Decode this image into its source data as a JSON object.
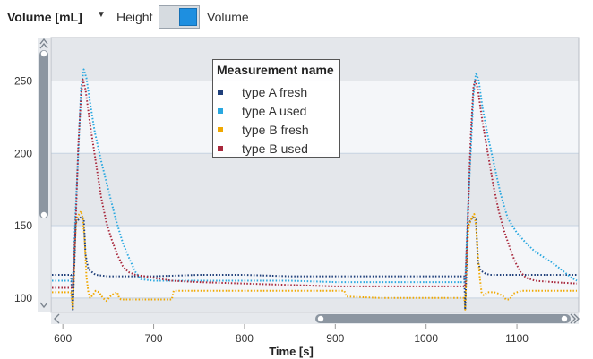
{
  "toolbar": {
    "metric_dropdown": "Volume [mL]",
    "height_label": "Height",
    "volume_label": "Volume",
    "toggle_state": "Volume"
  },
  "colors": {
    "type_a_fresh": "#1f3f7a",
    "type_a_used": "#2aa8e0",
    "type_b_fresh": "#f0a800",
    "type_b_used": "#a8283c",
    "plot_band_dark": "#e4e7eb",
    "plot_band_light": "#f4f6f9"
  },
  "chart_data": {
    "type": "line",
    "title": "",
    "xlabel": "Time [s]",
    "ylabel": "",
    "xlim": [
      587,
      1168
    ],
    "ylim": [
      90,
      280
    ],
    "x_ticks": [
      600,
      700,
      800,
      900,
      1000,
      1100
    ],
    "y_ticks": [
      100,
      150,
      200,
      250
    ],
    "grid": true,
    "legend": {
      "title": "Measurement name",
      "placement": "top-center"
    },
    "series": [
      {
        "name": "type A fresh",
        "color_key": "type_a_fresh",
        "points": [
          [
            588,
            116
          ],
          [
            605,
            116
          ],
          [
            609,
            116
          ],
          [
            611,
            92
          ],
          [
            613,
            130
          ],
          [
            614,
            152
          ],
          [
            617,
            154
          ],
          [
            620,
            156
          ],
          [
            623,
            155
          ],
          [
            625,
            130
          ],
          [
            628,
            120
          ],
          [
            632,
            118
          ],
          [
            636,
            116
          ],
          [
            650,
            115
          ],
          [
            700,
            115
          ],
          [
            750,
            116
          ],
          [
            800,
            116
          ],
          [
            850,
            115
          ],
          [
            900,
            115
          ],
          [
            950,
            115
          ],
          [
            1000,
            115
          ],
          [
            1040,
            115
          ],
          [
            1042,
            115
          ],
          [
            1043,
            92
          ],
          [
            1045,
            130
          ],
          [
            1046,
            150
          ],
          [
            1049,
            154
          ],
          [
            1052,
            156
          ],
          [
            1055,
            154
          ],
          [
            1057,
            125
          ],
          [
            1060,
            119
          ],
          [
            1065,
            117
          ],
          [
            1070,
            116
          ],
          [
            1100,
            116
          ],
          [
            1120,
            116
          ],
          [
            1150,
            116
          ],
          [
            1166,
            116
          ]
        ]
      },
      {
        "name": "type A used",
        "color_key": "type_a_used",
        "points": [
          [
            588,
            112
          ],
          [
            605,
            112
          ],
          [
            609,
            112
          ],
          [
            611,
            112
          ],
          [
            614,
            160
          ],
          [
            617,
            200
          ],
          [
            620,
            245
          ],
          [
            623,
            258
          ],
          [
            626,
            252
          ],
          [
            630,
            235
          ],
          [
            635,
            215
          ],
          [
            642,
            195
          ],
          [
            650,
            175
          ],
          [
            658,
            155
          ],
          [
            666,
            138
          ],
          [
            674,
            126
          ],
          [
            680,
            118
          ],
          [
            686,
            113
          ],
          [
            700,
            112
          ],
          [
            750,
            112
          ],
          [
            800,
            112
          ],
          [
            850,
            112
          ],
          [
            900,
            111
          ],
          [
            950,
            111
          ],
          [
            1000,
            111
          ],
          [
            1040,
            111
          ],
          [
            1043,
            111
          ],
          [
            1046,
            160
          ],
          [
            1049,
            200
          ],
          [
            1052,
            240
          ],
          [
            1055,
            256
          ],
          [
            1058,
            250
          ],
          [
            1062,
            232
          ],
          [
            1068,
            212
          ],
          [
            1075,
            192
          ],
          [
            1082,
            172
          ],
          [
            1090,
            155
          ],
          [
            1100,
            145
          ],
          [
            1110,
            138
          ],
          [
            1120,
            132
          ],
          [
            1130,
            128
          ],
          [
            1140,
            124
          ],
          [
            1150,
            119
          ],
          [
            1160,
            114
          ],
          [
            1166,
            112
          ]
        ]
      },
      {
        "name": "type B fresh",
        "color_key": "type_b_fresh",
        "points": [
          [
            588,
            104
          ],
          [
            605,
            104
          ],
          [
            609,
            104
          ],
          [
            611,
            92
          ],
          [
            613,
            135
          ],
          [
            615,
            155
          ],
          [
            618,
            158
          ],
          [
            620,
            160
          ],
          [
            622,
            155
          ],
          [
            624,
            140
          ],
          [
            626,
            115
          ],
          [
            628,
            104
          ],
          [
            630,
            100
          ],
          [
            633,
            102
          ],
          [
            636,
            105
          ],
          [
            640,
            104
          ],
          [
            644,
            100
          ],
          [
            648,
            98
          ],
          [
            652,
            101
          ],
          [
            656,
            103
          ],
          [
            660,
            104
          ],
          [
            662,
            100
          ],
          [
            664,
            99
          ],
          [
            680,
            99
          ],
          [
            700,
            99
          ],
          [
            720,
            99
          ],
          [
            722,
            105
          ],
          [
            750,
            105
          ],
          [
            800,
            105
          ],
          [
            850,
            105
          ],
          [
            900,
            105
          ],
          [
            910,
            105
          ],
          [
            912,
            101
          ],
          [
            950,
            100
          ],
          [
            1000,
            100
          ],
          [
            1040,
            100
          ],
          [
            1042,
            100
          ],
          [
            1043,
            92
          ],
          [
            1045,
            130
          ],
          [
            1047,
            150
          ],
          [
            1050,
            155
          ],
          [
            1053,
            158
          ],
          [
            1055,
            150
          ],
          [
            1057,
            130
          ],
          [
            1059,
            115
          ],
          [
            1061,
            104
          ],
          [
            1063,
            102
          ],
          [
            1068,
            104
          ],
          [
            1075,
            104
          ],
          [
            1080,
            103
          ],
          [
            1085,
            101
          ],
          [
            1088,
            99
          ],
          [
            1092,
            99
          ],
          [
            1096,
            103
          ],
          [
            1100,
            104
          ],
          [
            1105,
            105
          ],
          [
            1130,
            105
          ],
          [
            1150,
            105
          ],
          [
            1166,
            105
          ]
        ]
      },
      {
        "name": "type B used",
        "color_key": "type_b_used",
        "points": [
          [
            588,
            107
          ],
          [
            605,
            107
          ],
          [
            609,
            107
          ],
          [
            611,
            107
          ],
          [
            614,
            150
          ],
          [
            617,
            205
          ],
          [
            620,
            240
          ],
          [
            622,
            251
          ],
          [
            625,
            244
          ],
          [
            630,
            220
          ],
          [
            636,
            195
          ],
          [
            642,
            170
          ],
          [
            648,
            152
          ],
          [
            654,
            140
          ],
          [
            660,
            130
          ],
          [
            666,
            122
          ],
          [
            672,
            118
          ],
          [
            680,
            116
          ],
          [
            700,
            114
          ],
          [
            720,
            112
          ],
          [
            750,
            111
          ],
          [
            800,
            110
          ],
          [
            850,
            109
          ],
          [
            900,
            108
          ],
          [
            950,
            108
          ],
          [
            1000,
            108
          ],
          [
            1040,
            108
          ],
          [
            1043,
            108
          ],
          [
            1046,
            155
          ],
          [
            1049,
            210
          ],
          [
            1052,
            245
          ],
          [
            1054,
            251
          ],
          [
            1057,
            244
          ],
          [
            1062,
            222
          ],
          [
            1068,
            200
          ],
          [
            1074,
            178
          ],
          [
            1080,
            160
          ],
          [
            1086,
            146
          ],
          [
            1092,
            135
          ],
          [
            1098,
            125
          ],
          [
            1104,
            118
          ],
          [
            1110,
            114
          ],
          [
            1120,
            112
          ],
          [
            1140,
            111
          ],
          [
            1166,
            110
          ]
        ]
      }
    ]
  }
}
